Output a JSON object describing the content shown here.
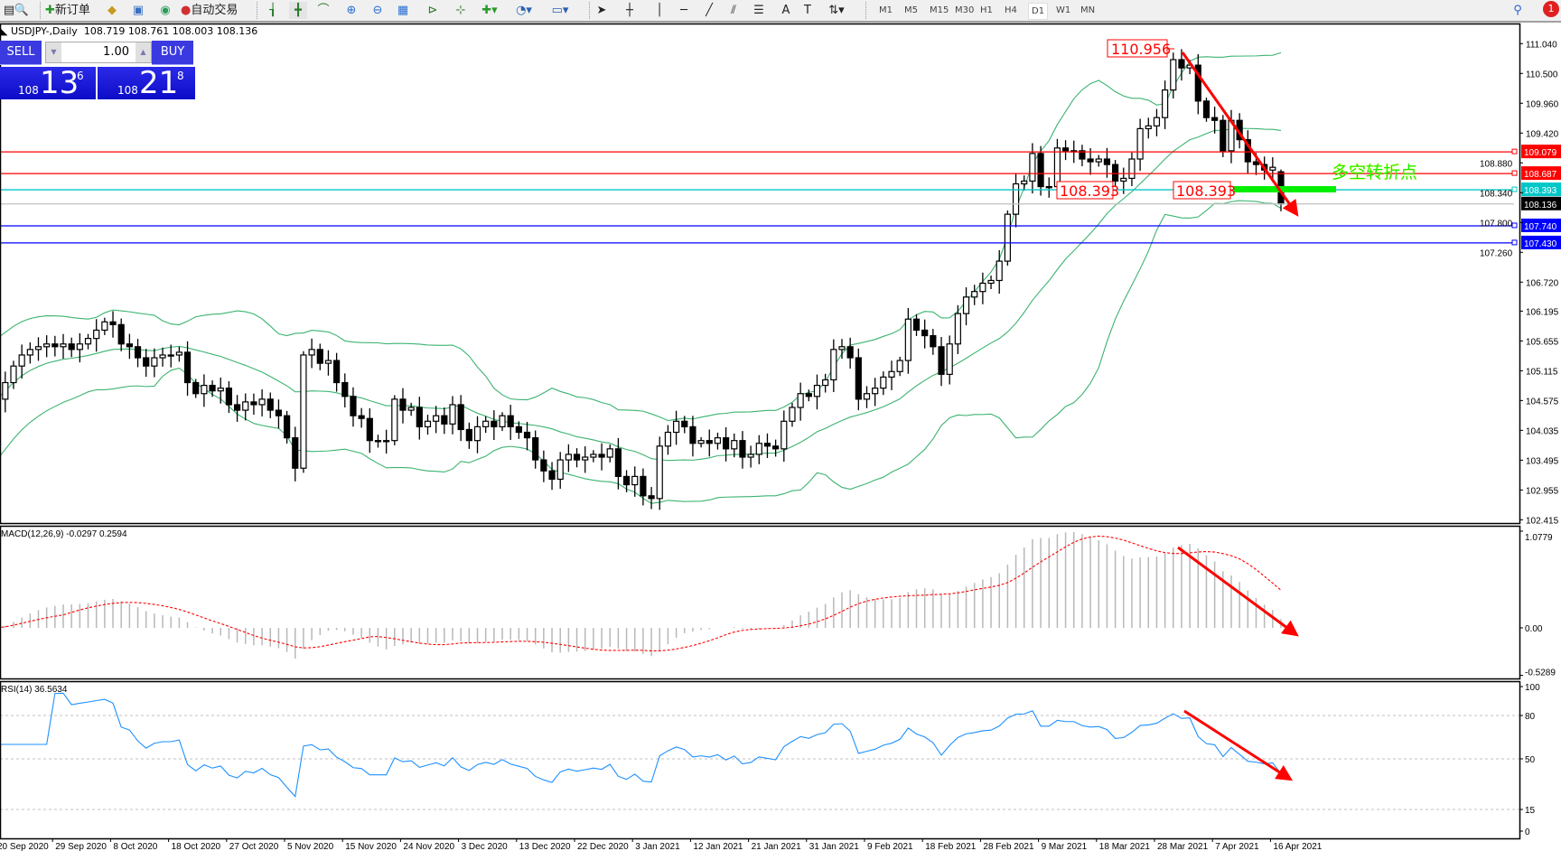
{
  "toolbar": {
    "new_order_label": "新订单",
    "auto_trading_label": "自动交易",
    "timeframes": [
      "M1",
      "M5",
      "M15",
      "M30",
      "H1",
      "H4",
      "D1",
      "W1",
      "MN"
    ],
    "active_timeframe": "D1",
    "notification_count": "1"
  },
  "chart_header": {
    "symbol": "USDJPY-,Daily",
    "ohlc": "108.719 108.761 108.003 108.136"
  },
  "trade_panel": {
    "sell_label": "SELL",
    "buy_label": "BUY",
    "lot": "1.00",
    "sell_price": {
      "prefix": "108",
      "big": "13",
      "sup": "6"
    },
    "buy_price": {
      "prefix": "108",
      "big": "21",
      "sup": "8"
    }
  },
  "price_axis": {
    "ticks": [
      "111.040",
      "110.500",
      "109.960",
      "109.420",
      "108.880",
      "108.340",
      "107.800",
      "107.260",
      "106.720",
      "106.195",
      "105.655",
      "105.115",
      "104.575",
      "104.035",
      "103.495",
      "102.955",
      "102.415"
    ]
  },
  "hlines": [
    {
      "price": 109.079,
      "label": "109.079",
      "color": "#ff0000"
    },
    {
      "price": 108.687,
      "label": "108.687",
      "color": "#ff0000"
    },
    {
      "price": 108.393,
      "label": "108.393",
      "color": "#00c8c8"
    },
    {
      "price": 108.136,
      "label": "108.136",
      "color": "#000000"
    },
    {
      "price": 107.74,
      "label": "107.740",
      "color": "#0000ff"
    },
    {
      "price": 107.43,
      "label": "107.430",
      "color": "#0000ff"
    }
  ],
  "annotations": {
    "peak_label": "110.956",
    "support_label_1": "108.393",
    "support_label_2": "108.393",
    "pivot_text": "多空转折点",
    "pivot_color": "#00ee00",
    "arrow_color": "#ff0000"
  },
  "macd": {
    "title": "MACD(12,26,9) -0.0297 0.2594",
    "ticks": [
      "1.0779",
      "0.00",
      "-0.5289"
    ]
  },
  "rsi": {
    "title": "RSI(14) 36.5634",
    "ticks": [
      "100",
      "80",
      "50",
      "15",
      "0"
    ]
  },
  "dates": [
    "20 Sep 2020",
    "29 Sep 2020",
    "8 Oct 2020",
    "18 Oct 2020",
    "27 Oct 2020",
    "5 Nov 2020",
    "15 Nov 2020",
    "24 Nov 2020",
    "3 Dec 2020",
    "13 Dec 2020",
    "22 Dec 2020",
    "3 Jan 2021",
    "12 Jan 2021",
    "21 Jan 2021",
    "31 Jan 2021",
    "9 Feb 2021",
    "18 Feb 2021",
    "28 Feb 2021",
    "9 Mar 2021",
    "18 Mar 2021",
    "28 Mar 2021",
    "7 Apr 2021",
    "16 Apr 2021"
  ],
  "chart_data": {
    "type": "candlestick",
    "ylim": [
      102.415,
      111.04
    ],
    "indicators": [
      "Bollinger Bands (20,2)",
      "MACD(12,26,9)",
      "RSI(14)"
    ],
    "last_bar": {
      "open": 108.719,
      "high": 108.761,
      "low": 108.003,
      "close": 108.136
    },
    "closes": [
      104.6,
      104.9,
      105.2,
      105.4,
      105.5,
      105.55,
      105.6,
      105.55,
      105.6,
      105.5,
      105.6,
      105.7,
      105.85,
      106.0,
      105.95,
      105.6,
      105.55,
      105.35,
      105.2,
      105.35,
      105.4,
      105.4,
      105.45,
      104.9,
      104.7,
      104.85,
      104.75,
      104.8,
      104.5,
      104.4,
      104.55,
      104.5,
      104.6,
      104.4,
      104.3,
      103.9,
      103.35,
      105.4,
      105.5,
      105.25,
      105.3,
      104.9,
      104.65,
      104.3,
      104.25,
      103.85,
      103.85,
      103.85,
      104.6,
      104.4,
      104.45,
      104.1,
      104.2,
      104.3,
      104.15,
      104.5,
      104.05,
      103.85,
      104.1,
      104.2,
      104.1,
      104.3,
      104.1,
      104.0,
      103.9,
      103.5,
      103.3,
      103.15,
      103.5,
      103.6,
      103.5,
      103.55,
      103.6,
      103.55,
      103.7,
      103.2,
      103.05,
      103.2,
      102.85,
      102.8,
      103.75,
      104.0,
      104.2,
      104.1,
      103.8,
      103.85,
      103.8,
      103.9,
      103.7,
      103.85,
      103.55,
      103.6,
      103.8,
      103.75,
      103.7,
      104.2,
      104.45,
      104.7,
      104.65,
      104.85,
      104.95,
      105.5,
      105.55,
      105.35,
      104.6,
      104.7,
      104.8,
      105.0,
      105.1,
      105.3,
      106.05,
      105.85,
      105.75,
      105.55,
      105.05,
      105.6,
      106.15,
      106.45,
      106.55,
      106.7,
      106.75,
      107.1,
      107.95,
      108.5,
      108.55,
      109.05,
      108.45,
      108.45,
      109.15,
      109.1,
      109.1,
      108.95,
      108.9,
      108.95,
      108.85,
      108.55,
      108.6,
      108.95,
      109.5,
      109.55,
      109.7,
      110.2,
      110.75,
      110.6,
      110.65,
      110.0,
      109.7,
      109.65,
      109.1,
      109.65,
      109.3,
      108.9,
      108.85,
      108.75,
      108.8,
      108.136
    ]
  }
}
